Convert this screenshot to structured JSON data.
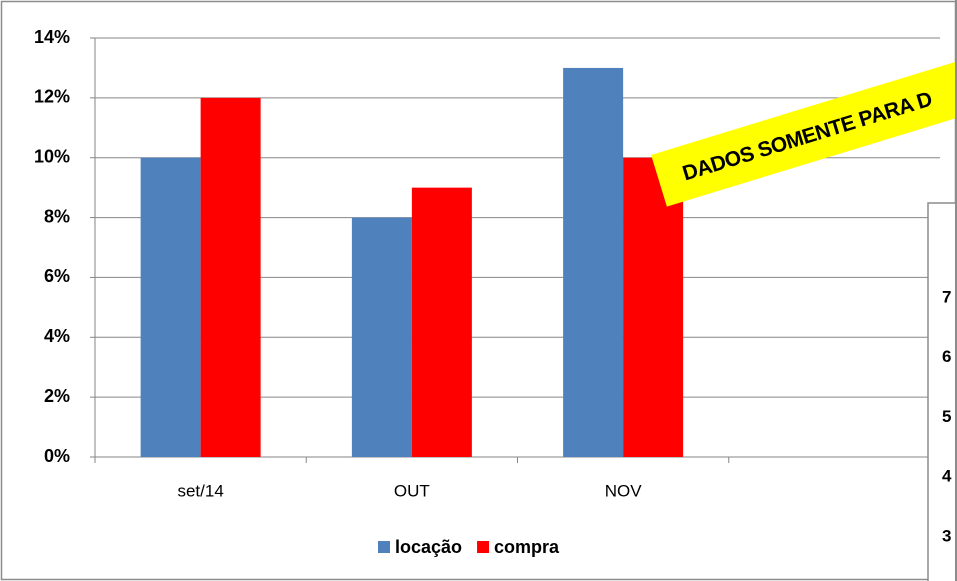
{
  "chart_data": {
    "type": "bar",
    "categories": [
      "set/14",
      "OUT",
      "NOV",
      null
    ],
    "series": [
      {
        "name": "locação",
        "color": "#4f81bd",
        "values": [
          10,
          8,
          13,
          null
        ]
      },
      {
        "name": "compra",
        "color": "#ff0000",
        "values": [
          12,
          9,
          10,
          null
        ]
      }
    ],
    "ylim": [
      0,
      14
    ],
    "yticks": [
      {
        "value": 0,
        "label": "0%"
      },
      {
        "value": 2,
        "label": "2%"
      },
      {
        "value": 4,
        "label": "4%"
      },
      {
        "value": 6,
        "label": "6%"
      },
      {
        "value": 8,
        "label": "8%"
      },
      {
        "value": 10,
        "label": "10%"
      },
      {
        "value": 12,
        "label": "12%"
      },
      {
        "value": 14,
        "label": "14%"
      }
    ],
    "grid": true,
    "legend": "bottom",
    "watermark": "DADOS SOMENTE PARA D",
    "overlay_labels": [
      "7",
      "6",
      "5",
      "4",
      "3"
    ]
  }
}
